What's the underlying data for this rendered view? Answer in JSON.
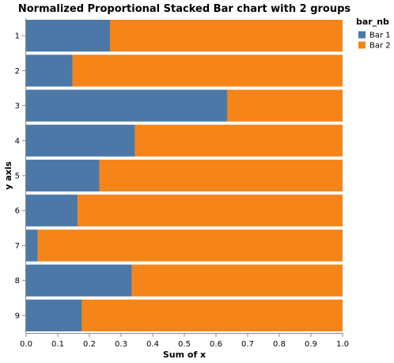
{
  "chart_data": {
    "type": "bar",
    "orientation": "horizontal",
    "stacked": "normalized",
    "title": "Normalized Proportional Stacked Bar chart with 2 groups",
    "xlabel": "Sum of x",
    "ylabel": "y axis",
    "xlim": [
      0,
      1
    ],
    "x_ticks": [
      "0.0",
      "0.1",
      "0.2",
      "0.3",
      "0.4",
      "0.5",
      "0.6",
      "0.7",
      "0.8",
      "0.9",
      "1.0"
    ],
    "categories": [
      "1",
      "2",
      "3",
      "4",
      "5",
      "6",
      "7",
      "8",
      "9"
    ],
    "legend_title": "bar_nb",
    "legend_position": "top-right",
    "grid": false,
    "series": [
      {
        "name": "Bar 1",
        "color": "#4c78a8",
        "values": [
          0.265,
          0.147,
          0.636,
          0.344,
          0.232,
          0.163,
          0.037,
          0.334,
          0.176
        ]
      },
      {
        "name": "Bar 2",
        "color": "#f58518",
        "values": [
          0.735,
          0.853,
          0.364,
          0.656,
          0.768,
          0.837,
          0.963,
          0.666,
          0.824
        ]
      }
    ]
  }
}
